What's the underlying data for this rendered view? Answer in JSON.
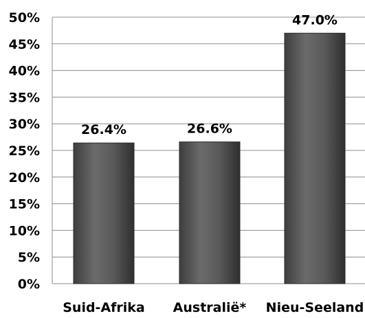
{
  "chart_data": {
    "type": "bar",
    "title": "",
    "xlabel": "",
    "ylabel": "",
    "categories": [
      "Suid-Afrika",
      "Australië*",
      "Nieu-Seeland"
    ],
    "values": [
      26.4,
      26.6,
      47.0
    ],
    "data_labels": [
      "26.4%",
      "26.6%",
      "47.0%"
    ],
    "ylim": [
      0,
      50
    ],
    "yticks": [
      0,
      5,
      10,
      15,
      20,
      25,
      30,
      35,
      40,
      45,
      50
    ],
    "ytick_labels": [
      "0%",
      "5%",
      "10%",
      "15%",
      "20%",
      "25%",
      "30%",
      "35%",
      "40%",
      "45%",
      "50%"
    ],
    "grid": true,
    "legend": "none",
    "bar_color": "#5a5a5a"
  }
}
